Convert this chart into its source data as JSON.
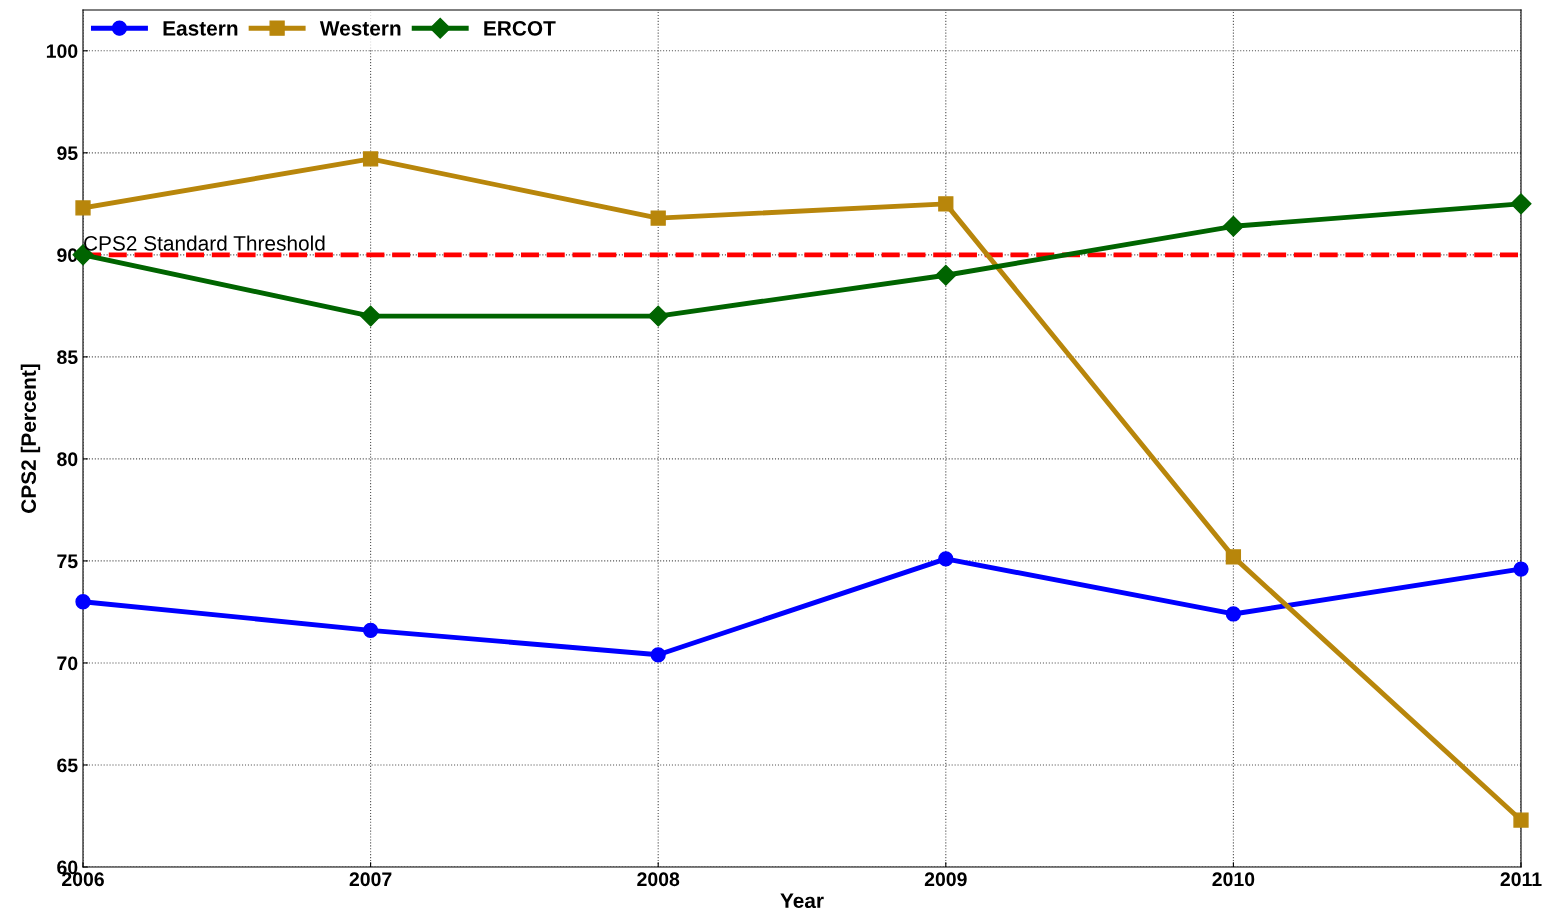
{
  "chart_data": {
    "type": "line",
    "xlabel": "Year",
    "ylabel": "CPS2 [Percent]",
    "x": [
      2006,
      2007,
      2008,
      2009,
      2010,
      2011
    ],
    "series": [
      {
        "name": "Eastern",
        "color": "#0000ff",
        "marker": "circle",
        "values": [
          73.0,
          71.6,
          70.4,
          75.1,
          72.4,
          74.6
        ]
      },
      {
        "name": "Western",
        "color": "#b8860b",
        "marker": "square",
        "values": [
          92.3,
          94.7,
          91.8,
          92.5,
          75.2,
          62.3
        ]
      },
      {
        "name": "ERCOT",
        "color": "#006400",
        "marker": "diamond",
        "values": [
          90.0,
          87.0,
          87.0,
          89.0,
          91.4,
          92.5
        ]
      }
    ],
    "ref_lines": [
      {
        "axis": "y",
        "value": 90,
        "label": "CPS2 Standard Threshold",
        "color": "#ff0000",
        "line_style": "dashed"
      }
    ],
    "xlim": [
      2006,
      2011
    ],
    "ylim": [
      60,
      102
    ],
    "xticks": [
      2006,
      2007,
      2008,
      2009,
      2010,
      2011
    ],
    "yticks": [
      60,
      65,
      70,
      75,
      80,
      85,
      90,
      95,
      100
    ],
    "grid": true,
    "legend": "top left",
    "line_style": "solid"
  }
}
